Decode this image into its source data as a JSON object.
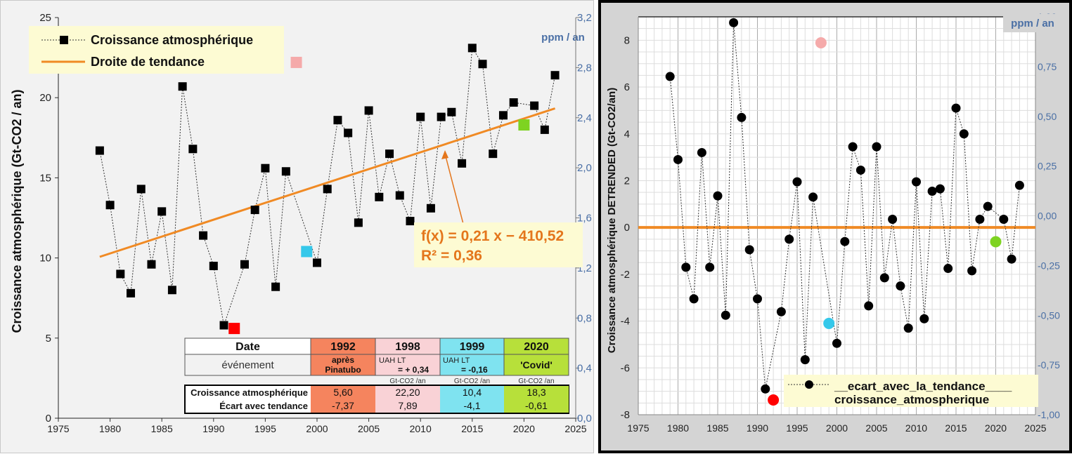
{
  "chart_data": [
    {
      "type": "scatter",
      "xlabel": "",
      "ylabel": "Croissance atmosphérique      (Gt-CO2 / an)",
      "y2label": "ppm / an",
      "xlim": [
        1975,
        2025
      ],
      "ylim": [
        0,
        25
      ],
      "y2lim": [
        0,
        3.2
      ],
      "x_ticks": [
        1975,
        1980,
        1985,
        1990,
        1995,
        2000,
        2005,
        2010,
        2015,
        2020,
        2025
      ],
      "y_ticks": [
        0,
        5,
        10,
        15,
        20,
        25
      ],
      "y2_ticks": [
        "0,0",
        "0,4",
        "0,8",
        "1,2",
        "1,6",
        "2,0",
        "2,4",
        "2,8",
        "3,2"
      ],
      "grid": false,
      "legend_position": "top-left",
      "series": [
        {
          "name": "Croissance atmosphérique",
          "color": "#000000",
          "marker": "square",
          "line": "dotted",
          "x": [
            1979,
            1980,
            1981,
            1982,
            1983,
            1984,
            1985,
            1986,
            1987,
            1988,
            1989,
            1990,
            1991,
            1993,
            1994,
            1995,
            1996,
            1997,
            2000,
            2001,
            2002,
            2003,
            2004,
            2005,
            2006,
            2007,
            2008,
            2009,
            2010,
            2011,
            2012,
            2013,
            2014,
            2015,
            2016,
            2017,
            2018,
            2019,
            2021,
            2022,
            2023
          ],
          "y": [
            16.7,
            13.3,
            9.0,
            7.8,
            14.3,
            9.6,
            12.9,
            8.0,
            20.7,
            16.8,
            11.4,
            9.5,
            5.8,
            9.6,
            13.0,
            15.6,
            8.2,
            15.4,
            9.7,
            14.3,
            18.6,
            17.8,
            12.2,
            19.2,
            13.8,
            16.5,
            13.9,
            12.3,
            18.8,
            13.1,
            18.8,
            19.1,
            15.9,
            23.1,
            22.1,
            16.5,
            18.9,
            19.7,
            19.5,
            18.0,
            21.4
          ]
        },
        {
          "name": "Droite de tendance",
          "color": "#f08a24",
          "type": "line",
          "x": [
            1979,
            2023
          ],
          "y": [
            10.07,
            19.33
          ]
        }
      ],
      "highlighted_points": [
        {
          "x": 1992,
          "y": 5.6,
          "color": "#ff0000"
        },
        {
          "x": 1998,
          "y": 22.2,
          "color": "#f5aaaa"
        },
        {
          "x": 1999,
          "y": 10.4,
          "color": "#35c8ea"
        },
        {
          "x": 2020,
          "y": 18.3,
          "color": "#7ed321"
        }
      ],
      "annotation": {
        "equation": "f(x) = 0,21 x − 410,52",
        "r2": "R² = 0,36",
        "color": "#e4761c"
      },
      "table": {
        "headers": [
          "Date",
          "1992",
          "1998",
          "1999",
          "2020"
        ],
        "header_colors": [
          "#ffffff",
          "#f5845e",
          "#f9d2d6",
          "#7fe3f0",
          "#b7e03a"
        ],
        "event_row": {
          "label": "événement",
          "cells": [
            {
              "line1": "après",
              "line2": "Pinatubo"
            },
            {
              "line1": "UAH LT",
              "line2": "= + 0,34"
            },
            {
              "line1": "UAH LT",
              "line2": "= -0,16"
            },
            {
              "line1": "'Covid'",
              "line2": ""
            }
          ]
        },
        "unit_row": [
          "Gt-CO2 /an",
          "Gt-CO2 /an",
          "Gt-CO2 /an"
        ],
        "rows": [
          {
            "label": "Croissance atmosphérique",
            "values": [
              "5,60",
              "22,20",
              "10,4",
              "18,3"
            ]
          },
          {
            "label": "Écart avec tendance",
            "values": [
              "-7,37",
              "7,89",
              "-4,1",
              "-0,61"
            ]
          }
        ]
      }
    },
    {
      "type": "scatter",
      "xlabel": "",
      "ylabel": "Croissance atmosphérique DETRENDED      (Gt-CO2/an)",
      "y2label": "ppm / an",
      "xlim": [
        1975,
        2025
      ],
      "ylim": [
        -8,
        9
      ],
      "y2lim": [
        -1.0,
        1.0
      ],
      "x_ticks": [
        1975,
        1980,
        1985,
        1990,
        1995,
        2000,
        2005,
        2010,
        2015,
        2020,
        2025
      ],
      "y_ticks": [
        -8,
        -6,
        -4,
        -2,
        0,
        2,
        4,
        6,
        8
      ],
      "y2_ticks": [
        "-1,00",
        "-0,75",
        "-0,50",
        "-0,25",
        "0,00",
        "0,25",
        "0,50",
        "0,75",
        "1,00"
      ],
      "grid": true,
      "legend_position": "bottom-left",
      "series": [
        {
          "name": "__ecart_avec_la_tendance____",
          "legend_line2": "croissance_atmospherique",
          "color": "#000000",
          "marker": "circle",
          "line": "dotted",
          "x": [
            1979,
            1980,
            1981,
            1982,
            1983,
            1984,
            1985,
            1986,
            1987,
            1988,
            1989,
            1990,
            1991,
            1993,
            1994,
            1995,
            1996,
            1997,
            2000,
            2001,
            2002,
            2003,
            2004,
            2005,
            2006,
            2007,
            2008,
            2009,
            2010,
            2011,
            2012,
            2013,
            2014,
            2015,
            2016,
            2017,
            2018,
            2019,
            2021,
            2022,
            2023
          ],
          "y": [
            6.45,
            2.9,
            -1.7,
            -3.05,
            3.2,
            -1.7,
            1.35,
            -3.75,
            8.75,
            4.7,
            -0.95,
            -3.05,
            -6.9,
            -3.6,
            -0.5,
            1.95,
            -5.65,
            1.3,
            -4.95,
            -0.6,
            3.45,
            2.45,
            -3.35,
            3.45,
            -2.15,
            0.35,
            -2.5,
            -4.3,
            1.95,
            -3.9,
            1.55,
            1.65,
            -1.75,
            5.1,
            4.0,
            -1.85,
            0.35,
            0.9,
            0.35,
            -1.35,
            1.8
          ]
        },
        {
          "name": "",
          "color": "#f08a24",
          "type": "line",
          "x": [
            1975,
            2025
          ],
          "y": [
            0,
            0
          ]
        }
      ],
      "highlighted_points": [
        {
          "x": 1992,
          "y": -7.37,
          "color": "#ff0000"
        },
        {
          "x": 1998,
          "y": 7.89,
          "color": "#f5aaaa"
        },
        {
          "x": 1999,
          "y": -4.1,
          "color": "#35c8ea"
        },
        {
          "x": 2020,
          "y": -0.61,
          "color": "#7ed321"
        }
      ]
    }
  ]
}
